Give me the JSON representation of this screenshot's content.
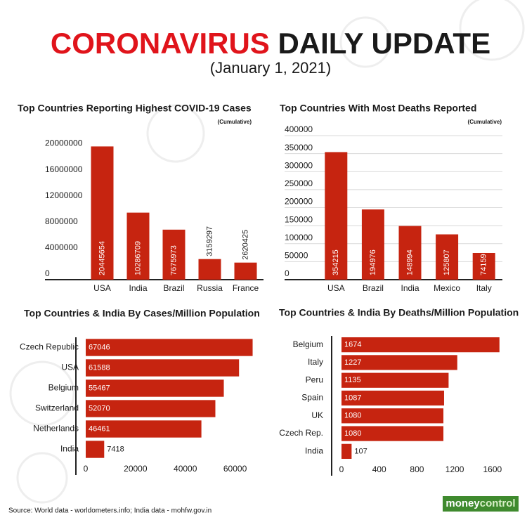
{
  "header": {
    "title_red": "CORONAVIRUS",
    "title_black": "DAILY UPDATE",
    "subtitle": "(January 1, 2021)"
  },
  "chart_data": [
    {
      "type": "bar",
      "title": "Top Countries Reporting Highest COVID-19 Cases",
      "subtitle": "(Cumulative)",
      "categories": [
        "USA",
        "India",
        "Brazil",
        "Russia",
        "France"
      ],
      "values": [
        20445654,
        10286709,
        7675973,
        3159297,
        2620425
      ],
      "color": "#c62410",
      "ylim": [
        0,
        22000000
      ],
      "yticks": [
        0,
        4000000,
        8000000,
        12000000,
        16000000,
        20000000
      ],
      "grid": false
    },
    {
      "type": "bar",
      "title": "Top Countries With Most Deaths Reported",
      "subtitle": "(Cumulative)",
      "categories": [
        "USA",
        "Brazil",
        "India",
        "Mexico",
        "Italy"
      ],
      "values": [
        354215,
        194976,
        148994,
        125807,
        74159
      ],
      "color": "#c62410",
      "ylim": [
        0,
        400000
      ],
      "yticks": [
        0,
        50000,
        100000,
        150000,
        200000,
        250000,
        300000,
        350000,
        400000
      ],
      "grid": true
    },
    {
      "type": "barh",
      "title": "Top Countries & India By Cases/Million Population",
      "categories": [
        "Czech Republic",
        "USA",
        "Belgium",
        "Switzerland",
        "Netherlands",
        "India"
      ],
      "values": [
        67046,
        61588,
        55467,
        52070,
        46461,
        7418
      ],
      "color": "#c62410",
      "xlim": [
        0,
        70000
      ],
      "xticks": [
        0,
        20000,
        40000,
        60000
      ],
      "grid": false
    },
    {
      "type": "barh",
      "title": "Top Countries & India By Deaths/Million Population",
      "categories": [
        "Belgium",
        "Italy",
        "Peru",
        "Spain",
        "UK",
        "Czech Rep.",
        "India"
      ],
      "values": [
        1674,
        1227,
        1135,
        1087,
        1080,
        1080,
        107
      ],
      "color": "#c62410",
      "xlim": [
        0,
        1750
      ],
      "xticks": [
        0,
        400,
        800,
        1200,
        1600
      ],
      "grid": false
    }
  ],
  "footer": {
    "source": "Source: World data - worldometers.info; India data - mohfw.gov.in",
    "logo": [
      "money",
      "control"
    ]
  }
}
